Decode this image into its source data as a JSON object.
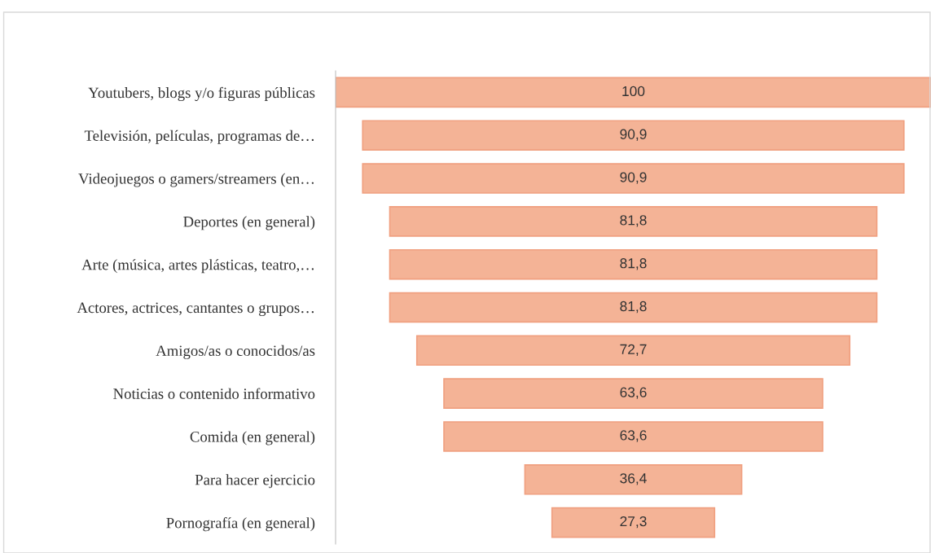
{
  "chart_data": {
    "type": "other",
    "categories": [
      "Youtubers, blogs y/o figuras públicas",
      "Televisión, películas, programas de…",
      "Videojuegos o gamers/streamers (en…",
      "Deportes (en general)",
      "Arte (música, artes plásticas, teatro,…",
      "Actores, actrices, cantantes o grupos…",
      "Amigos/as o conocidos/as",
      "Noticias o contenido informativo",
      "Comida (en general)",
      "Para hacer ejercicio",
      "Pornografía (en general)"
    ],
    "values": [
      100,
      90.9,
      90.9,
      81.8,
      81.8,
      81.8,
      72.7,
      63.6,
      63.6,
      36.4,
      27.3
    ],
    "value_labels": [
      "100",
      "90,9",
      "90,9",
      "81,8",
      "81,8",
      "81,8",
      "72,7",
      "63,6",
      "63,6",
      "36,4",
      "27,3"
    ],
    "color": "#f4b396"
  }
}
